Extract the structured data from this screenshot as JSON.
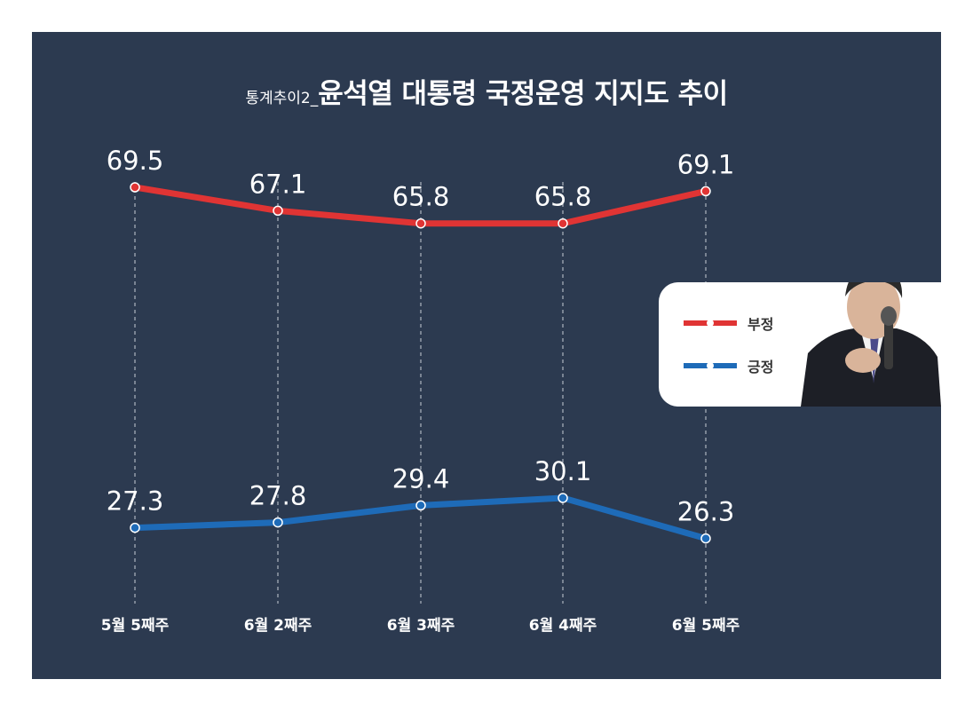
{
  "title": {
    "prefix": "통계추이2_",
    "main": "윤석열 대통령 국정운영 지지도 추이"
  },
  "colors": {
    "background": "#2c3a50",
    "negative": "#e03434",
    "positive": "#1e6bb8"
  },
  "legend": {
    "items": [
      {
        "label": "부정",
        "color": "#e03434"
      },
      {
        "label": "긍정",
        "color": "#1e6bb8"
      }
    ]
  },
  "chart_data": {
    "type": "line",
    "categories": [
      "5월 5째주",
      "6월 2째주",
      "6월 3째주",
      "6월 4째주",
      "6월 5째주"
    ],
    "series": [
      {
        "name": "부정",
        "values": [
          69.5,
          67.1,
          65.8,
          65.8,
          69.1
        ],
        "color": "#e03434"
      },
      {
        "name": "긍정",
        "values": [
          27.3,
          27.8,
          29.4,
          30.1,
          26.3
        ],
        "color": "#1e6bb8"
      }
    ],
    "title": "윤석열 대통령 국정운영 지지도 추이",
    "xlabel": "",
    "ylabel": "",
    "grid": "vertical dashed lines per category",
    "legend_position": "right"
  }
}
